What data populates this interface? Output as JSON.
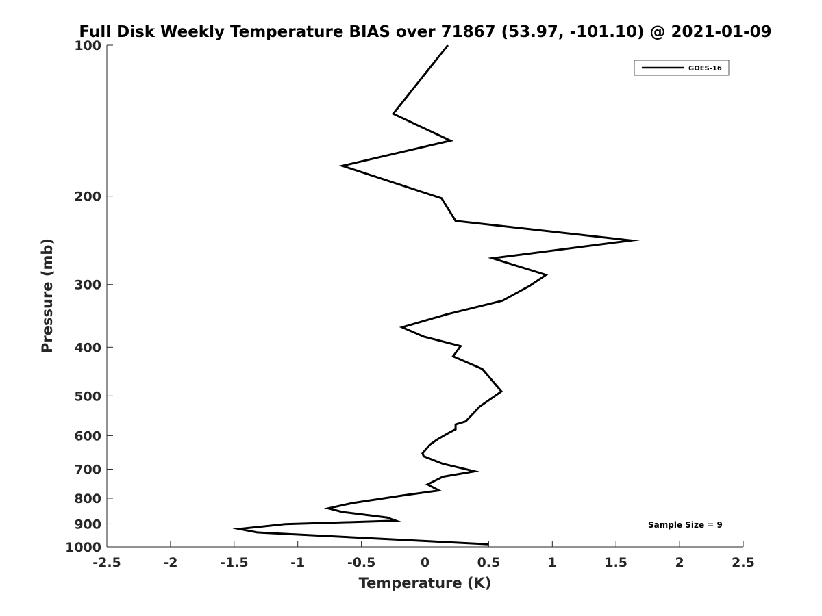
{
  "chart_data": {
    "type": "line",
    "title": "Full Disk Weekly Temperature BIAS over 71867 (53.97, -101.10) @ 2021-01-09",
    "xlabel": "Temperature (K)",
    "ylabel": "Pressure (mb)",
    "xlim": [
      -2.5,
      2.5
    ],
    "ylim": [
      1000,
      100
    ],
    "y_scale": "log",
    "y_reversed": true,
    "grid": false,
    "legend_position": "top-right",
    "xticks": [
      -2.5,
      -2,
      -1.5,
      -1,
      -0.5,
      0,
      0.5,
      1,
      1.5,
      2,
      2.5
    ],
    "xtick_labels": [
      "-2.5",
      "-2",
      "-1.5",
      "-1",
      "-0.5",
      "0",
      "0.5",
      "1",
      "1.5",
      "2",
      "2.5"
    ],
    "yticks": [
      100,
      200,
      300,
      400,
      500,
      600,
      700,
      800,
      900,
      1000
    ],
    "ytick_labels": [
      "100",
      "200",
      "300",
      "400",
      "500",
      "600",
      "700",
      "800",
      "900",
      "1000"
    ],
    "series": [
      {
        "name": "GOES-16",
        "color": "#000000",
        "points": [
          {
            "x": 0.18,
            "y": 100
          },
          {
            "x": -0.25,
            "y": 137
          },
          {
            "x": 0.2,
            "y": 155
          },
          {
            "x": -0.65,
            "y": 174
          },
          {
            "x": 0.13,
            "y": 202
          },
          {
            "x": 0.24,
            "y": 224
          },
          {
            "x": 1.62,
            "y": 245
          },
          {
            "x": 0.53,
            "y": 266
          },
          {
            "x": 0.95,
            "y": 287
          },
          {
            "x": 0.82,
            "y": 302
          },
          {
            "x": 0.61,
            "y": 323
          },
          {
            "x": 0.17,
            "y": 344
          },
          {
            "x": -0.18,
            "y": 365
          },
          {
            "x": -0.01,
            "y": 381
          },
          {
            "x": 0.28,
            "y": 398
          },
          {
            "x": 0.22,
            "y": 417
          },
          {
            "x": 0.45,
            "y": 442
          },
          {
            "x": 0.6,
            "y": 490
          },
          {
            "x": 0.43,
            "y": 525
          },
          {
            "x": 0.32,
            "y": 562
          },
          {
            "x": 0.24,
            "y": 570
          },
          {
            "x": 0.24,
            "y": 583
          },
          {
            "x": 0.2,
            "y": 590
          },
          {
            "x": 0.1,
            "y": 610
          },
          {
            "x": 0.04,
            "y": 625
          },
          {
            "x": -0.02,
            "y": 651
          },
          {
            "x": -0.01,
            "y": 660
          },
          {
            "x": 0.14,
            "y": 683
          },
          {
            "x": 0.39,
            "y": 707
          },
          {
            "x": 0.14,
            "y": 725
          },
          {
            "x": 0.02,
            "y": 751
          },
          {
            "x": 0.11,
            "y": 772
          },
          {
            "x": -0.18,
            "y": 790
          },
          {
            "x": -0.57,
            "y": 818
          },
          {
            "x": -0.76,
            "y": 838
          },
          {
            "x": -0.65,
            "y": 852
          },
          {
            "x": -0.3,
            "y": 874
          },
          {
            "x": -0.23,
            "y": 887
          },
          {
            "x": -1.1,
            "y": 901
          },
          {
            "x": -1.46,
            "y": 921
          },
          {
            "x": -1.32,
            "y": 936
          },
          {
            "x": 0.5,
            "y": 988
          }
        ]
      }
    ],
    "annotations": [
      "Sample Size = 9"
    ]
  }
}
